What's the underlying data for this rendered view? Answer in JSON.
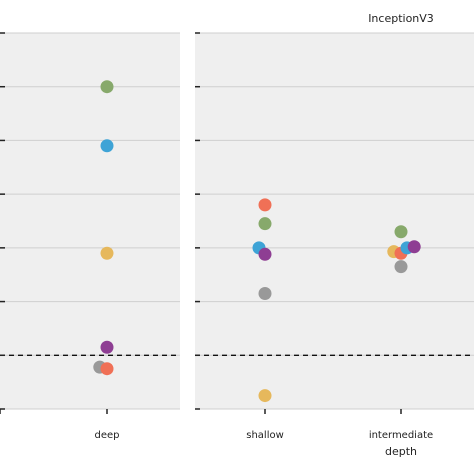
{
  "chart_data": [
    {
      "type": "scatter",
      "panel": "left",
      "title": "",
      "xlabel": "",
      "categories": [
        "",
        "deep"
      ],
      "ylim": [
        0,
        7
      ],
      "grid": true,
      "reference_line": 1,
      "points": [
        {
          "category": "deep",
          "offset": 0,
          "y": 6.0,
          "color": "#87a96b"
        },
        {
          "category": "deep",
          "offset": 0,
          "y": 4.9,
          "color": "#3ea3d6"
        },
        {
          "category": "deep",
          "offset": 0,
          "y": 2.9,
          "color": "#e6b85c"
        },
        {
          "category": "deep",
          "offset": 0,
          "y": 1.15,
          "color": "#8e3e93"
        },
        {
          "category": "deep",
          "offset": -0.12,
          "y": 0.78,
          "color": "#999999"
        },
        {
          "category": "deep",
          "offset": 0.0,
          "y": 0.75,
          "color": "#f07056"
        }
      ]
    },
    {
      "type": "scatter",
      "panel": "right",
      "title": "InceptionV3",
      "xlabel": "depth",
      "categories": [
        "shallow",
        "intermediate"
      ],
      "ylim": [
        0,
        7
      ],
      "grid": true,
      "reference_line": 1,
      "points": [
        {
          "category": "shallow",
          "offset": 0,
          "y": 3.8,
          "color": "#f07056"
        },
        {
          "category": "shallow",
          "offset": 0,
          "y": 3.45,
          "color": "#87a96b"
        },
        {
          "category": "shallow",
          "offset": -0.1,
          "y": 3.0,
          "color": "#3ea3d6"
        },
        {
          "category": "shallow",
          "offset": 0,
          "y": 2.88,
          "color": "#8e3e93"
        },
        {
          "category": "shallow",
          "offset": 0,
          "y": 2.15,
          "color": "#999999"
        },
        {
          "category": "shallow",
          "offset": 0,
          "y": 0.25,
          "color": "#e6b85c"
        },
        {
          "category": "intermediate",
          "offset": 0,
          "y": 3.3,
          "color": "#87a96b"
        },
        {
          "category": "intermediate",
          "offset": -0.12,
          "y": 2.93,
          "color": "#e6b85c"
        },
        {
          "category": "intermediate",
          "offset": 0,
          "y": 2.9,
          "color": "#f07056"
        },
        {
          "category": "intermediate",
          "offset": 0.1,
          "y": 3.0,
          "color": "#3ea3d6"
        },
        {
          "category": "intermediate",
          "offset": 0.22,
          "y": 3.02,
          "color": "#8e3e93"
        },
        {
          "category": "intermediate",
          "offset": 0,
          "y": 2.65,
          "color": "#999999"
        }
      ]
    }
  ],
  "colors": {
    "panel_background": "#efefef",
    "grid": "#cfcfcf",
    "reference_line": "#111111"
  }
}
